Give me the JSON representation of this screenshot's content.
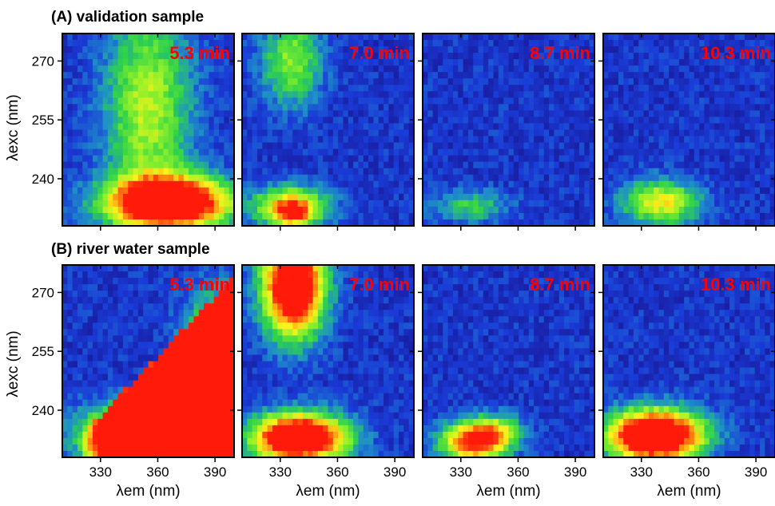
{
  "chart_data": {
    "type": "heatmap",
    "rows": [
      {
        "title": "(A) validation sample"
      },
      {
        "title": "(B) river water sample"
      }
    ],
    "times": [
      "5.3 min",
      "7.0 min",
      "8.7 min",
      "10.3 min"
    ],
    "xlabel": "λem (nm)",
    "ylabel": "λexc (nm)",
    "xlim": [
      310,
      400
    ],
    "ylim": [
      228,
      277
    ],
    "xticks": [
      330,
      360,
      390
    ],
    "yticks": [
      240,
      255,
      270
    ],
    "colorscale": [
      "#18108a",
      "#1a3cd8",
      "#1e90c8",
      "#2fd34a",
      "#8ef02a",
      "#fff21a",
      "#ff8a10",
      "#ff1a0a"
    ],
    "panels": [
      [
        {
          "time": "5.3 min",
          "max_intensity": 1.0,
          "features": [
            {
              "type": "blob",
              "x": 366,
              "y": 234,
              "sx": 22,
              "sy": 4.5,
              "amp": 1.35
            },
            {
              "type": "blob",
              "x": 355,
              "y": 258,
              "sx": 16,
              "sy": 18,
              "amp": 0.5
            }
          ]
        },
        {
          "time": "7.0 min",
          "max_intensity": 0.9,
          "features": [
            {
              "type": "blob",
              "x": 335,
              "y": 233,
              "sx": 14,
              "sy": 3.5,
              "amp": 0.7
            },
            {
              "type": "blob",
              "x": 337,
              "y": 231,
              "sx": 6,
              "sy": 2,
              "amp": 0.5
            },
            {
              "type": "blob",
              "x": 336,
              "y": 270,
              "sx": 11,
              "sy": 8,
              "amp": 0.45
            }
          ]
        },
        {
          "time": "8.7 min",
          "max_intensity": 0.4,
          "features": [
            {
              "type": "blob",
              "x": 335,
              "y": 233,
              "sx": 14,
              "sy": 3,
              "amp": 0.3
            }
          ]
        },
        {
          "time": "10.3 min",
          "max_intensity": 0.8,
          "features": [
            {
              "type": "blob",
              "x": 340,
              "y": 234,
              "sx": 14,
              "sy": 4,
              "amp": 0.6
            }
          ]
        }
      ],
      [
        {
          "time": "5.3 min",
          "max_intensity": 1.0,
          "features": [
            {
              "type": "ridge",
              "x0": 325,
              "y0": 232,
              "x1": 400,
              "y1": 270,
              "width": 5.0,
              "amp": 1.15
            },
            {
              "type": "blob",
              "x": 364,
              "y": 234,
              "sx": 26,
              "sy": 5,
              "amp": 1.4
            },
            {
              "type": "blob",
              "x": 392,
              "y": 248,
              "sx": 12,
              "sy": 12,
              "amp": 1.1
            }
          ]
        },
        {
          "time": "7.0 min",
          "max_intensity": 1.0,
          "features": [
            {
              "type": "blob",
              "x": 337,
              "y": 272,
              "sx": 11,
              "sy": 9,
              "amp": 1.3
            },
            {
              "type": "blob",
              "x": 340,
              "y": 233,
              "sx": 17,
              "sy": 4.2,
              "amp": 1.35
            }
          ]
        },
        {
          "time": "8.7 min",
          "max_intensity": 0.9,
          "features": [
            {
              "type": "blob",
              "x": 337,
              "y": 232,
              "sx": 12,
              "sy": 3.5,
              "amp": 0.95
            },
            {
              "type": "blob",
              "x": 350,
              "y": 235,
              "sx": 9,
              "sy": 3,
              "amp": 0.35
            }
          ]
        },
        {
          "time": "10.3 min",
          "max_intensity": 1.0,
          "features": [
            {
              "type": "blob",
              "x": 337,
              "y": 233.5,
              "sx": 17,
              "sy": 4.5,
              "amp": 1.4
            }
          ]
        }
      ]
    ]
  }
}
